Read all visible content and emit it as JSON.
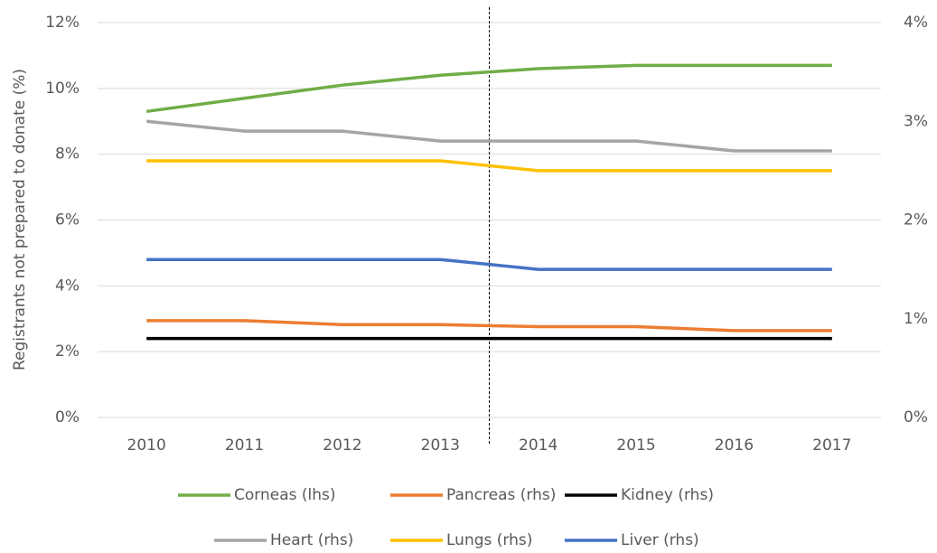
{
  "chart_data": {
    "type": "line",
    "y_label": "Registrants not prepared to donate (%)",
    "categories": [
      "2010",
      "2011",
      "2012",
      "2013",
      "2014",
      "2015",
      "2016",
      "2017"
    ],
    "ylim": [
      0,
      12
    ],
    "yticks": [
      {
        "value": 0,
        "label": "0%"
      },
      {
        "value": 2,
        "label": "2%"
      },
      {
        "value": 4,
        "label": "4%"
      },
      {
        "value": 6,
        "label": "6%"
      },
      {
        "value": 8,
        "label": "8%"
      },
      {
        "value": 10,
        "label": "10%"
      },
      {
        "value": 12,
        "label": "12%"
      }
    ],
    "y2lim": [
      0,
      4
    ],
    "y2ticks": [
      {
        "value": 0,
        "label": "0%"
      },
      {
        "value": 1,
        "label": "1%"
      },
      {
        "value": 2,
        "label": "2%"
      },
      {
        "value": 3,
        "label": "3%"
      },
      {
        "value": 4,
        "label": "4%"
      }
    ],
    "grid": true,
    "series": [
      {
        "name": "Corneas (lhs)",
        "color": "#70ad47",
        "values": [
          9.3,
          9.7,
          10.1,
          10.4,
          10.6,
          10.7,
          10.7,
          10.7
        ]
      },
      {
        "name": "Pancreas (rhs)",
        "color": "#ed7d31",
        "axis": "y2",
        "values": [
          0.98,
          0.98,
          0.94,
          0.94,
          0.92,
          0.92,
          0.88,
          0.88
        ]
      },
      {
        "name": "Kidney (rhs)",
        "color": "#000000",
        "axis": "y2",
        "values": [
          0.8,
          0.8,
          0.8,
          0.8,
          0.8,
          0.8,
          0.8,
          0.8
        ]
      },
      {
        "name": "Heart (rhs)",
        "color": "#a5a5a5",
        "axis": "y2",
        "values": [
          3.0,
          2.9,
          2.9,
          2.8,
          2.8,
          2.8,
          2.7,
          2.7
        ]
      },
      {
        "name": "Lungs (rhs)",
        "color": "#ffc000",
        "axis": "y2",
        "values": [
          2.6,
          2.6,
          2.6,
          2.6,
          2.5,
          2.5,
          2.5,
          2.5
        ]
      },
      {
        "name": "Liver (rhs)",
        "color": "#4472c4",
        "axis": "y2",
        "values": [
          1.6,
          1.6,
          1.6,
          1.6,
          1.5,
          1.5,
          1.5,
          1.5
        ]
      }
    ]
  }
}
